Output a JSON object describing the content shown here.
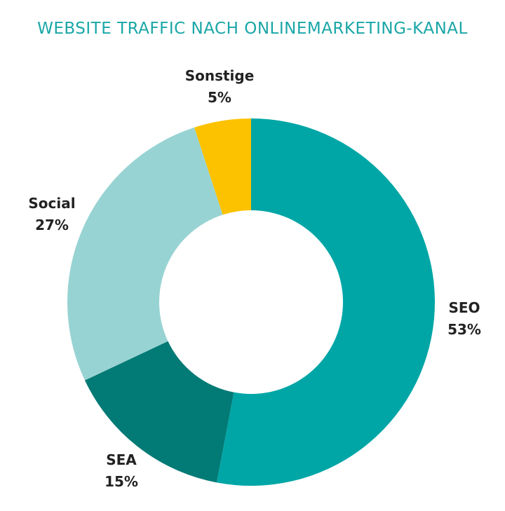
{
  "chart_data": {
    "type": "pie",
    "title": "WEBSITE TRAFFIC NACH ONLINEMARKETING-KANAL",
    "donut": true,
    "slices": [
      {
        "name": "SEO",
        "label": "SEO",
        "value": 53,
        "value_label": "53%",
        "color": "#00a6a6"
      },
      {
        "name": "SEA",
        "label": "SEA",
        "value": 15,
        "value_label": "15%",
        "color": "#027a75"
      },
      {
        "name": "Social",
        "label": "Social",
        "value": 27,
        "value_label": "27%",
        "color": "#98d3d3"
      },
      {
        "name": "Sonstige",
        "label": "Sonstige",
        "value": 5,
        "value_label": "5%",
        "color": "#fcc200"
      }
    ]
  }
}
